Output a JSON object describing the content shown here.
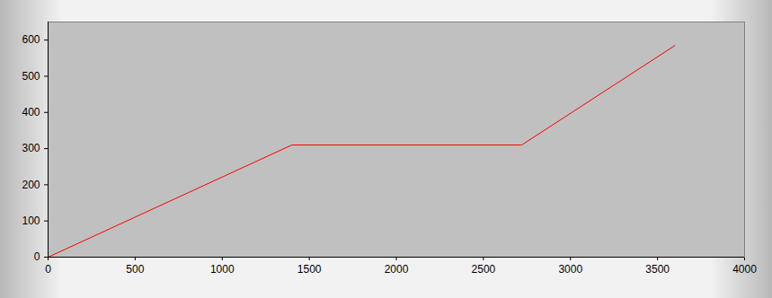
{
  "chart_data": {
    "type": "line",
    "x": [
      0,
      1400,
      2720,
      3600
    ],
    "values": [
      0,
      310,
      310,
      585
    ],
    "color": "#ff0000",
    "xlim": [
      0,
      4000
    ],
    "xticks": [
      0,
      500,
      1000,
      1500,
      2000,
      2500,
      3000,
      3500,
      4000
    ],
    "ylim": [
      0,
      650
    ],
    "yticks": [
      0,
      100,
      200,
      300,
      400,
      500,
      600
    ],
    "grid": false
  }
}
